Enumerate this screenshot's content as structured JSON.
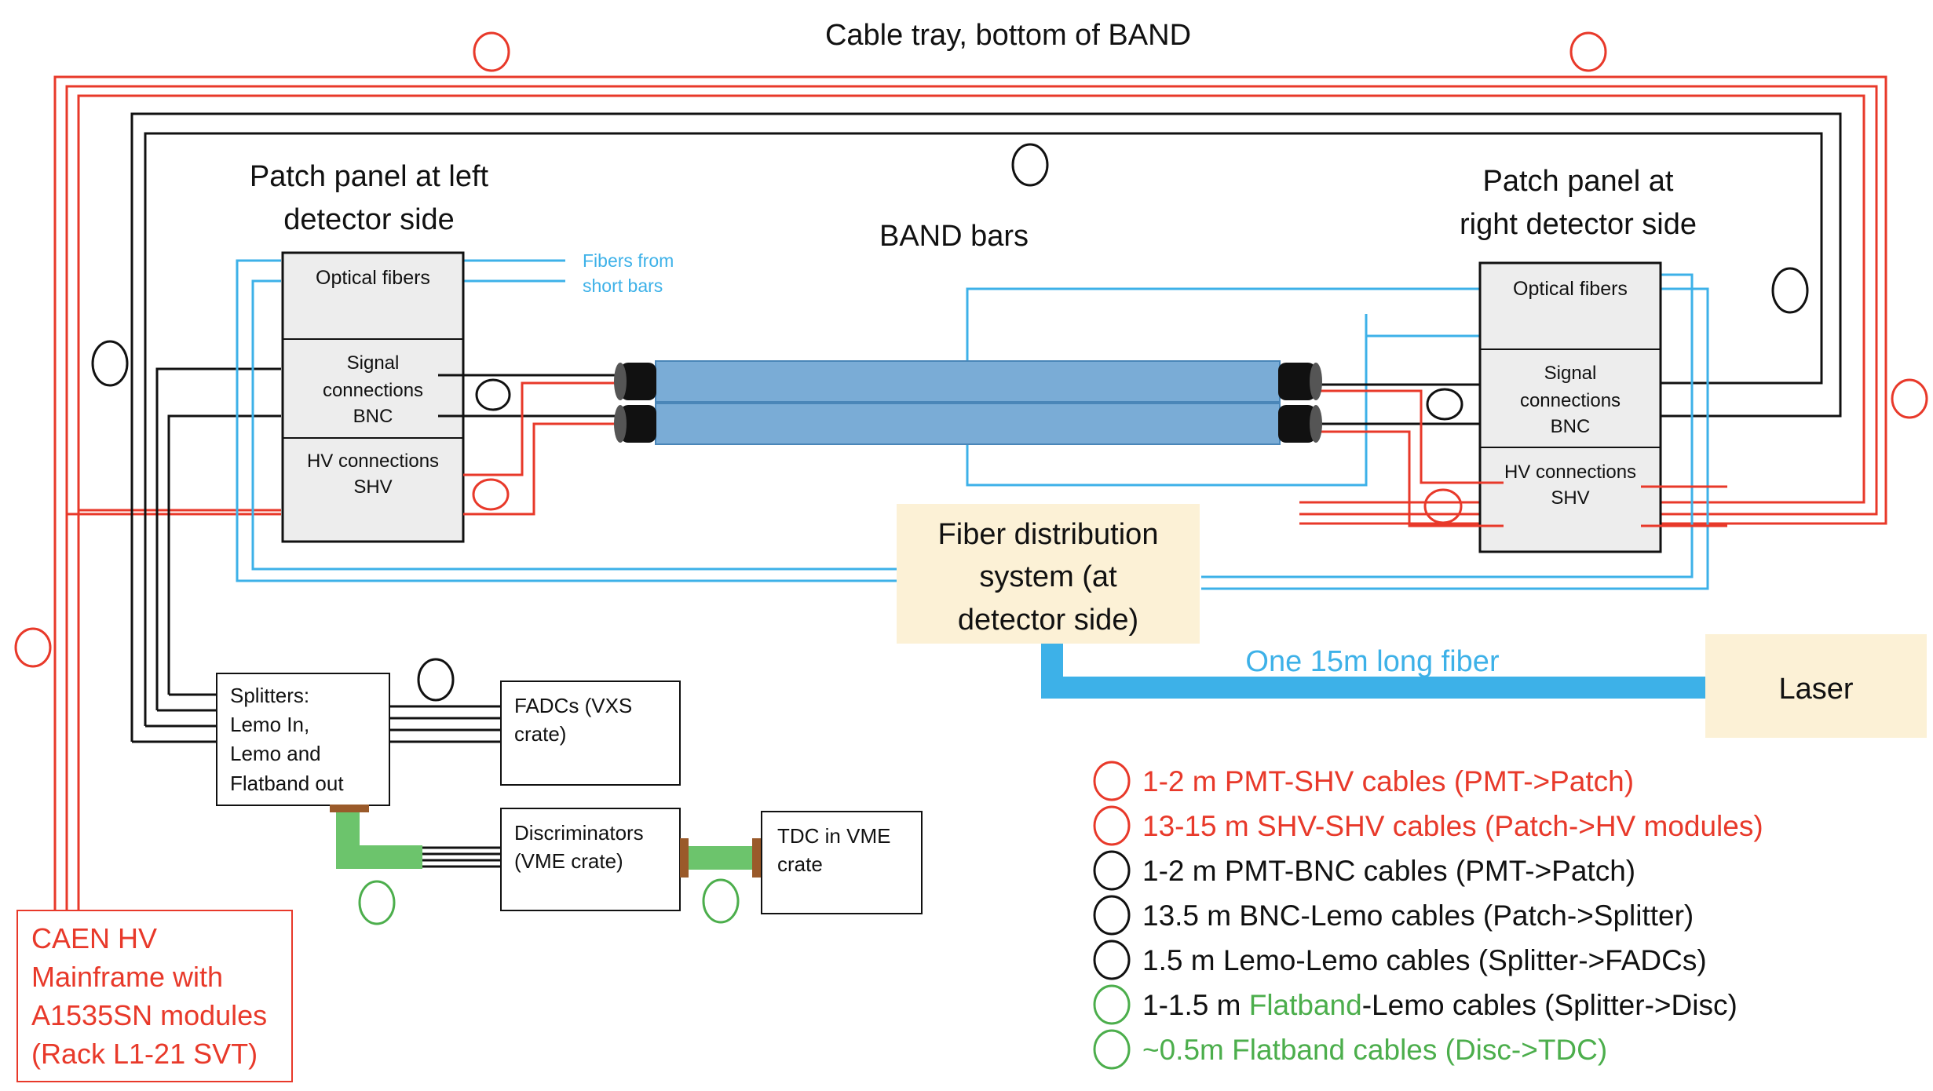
{
  "colors": {
    "red": "#e8392a",
    "black": "#111111",
    "blue": "#3db1e8",
    "green": "#4cae4c",
    "bar_fill": "#7aacd6",
    "panel_fill": "#ededed",
    "tan_fill": "#fcf1d6",
    "flatband_green": "#6cc46c",
    "connector_brown": "#9a5a2a"
  },
  "title": "Cable tray, bottom of BAND",
  "left_panel": {
    "heading": [
      "Patch panel at left",
      "detector side"
    ],
    "optical": "Optical fibers",
    "signal": [
      "Signal",
      "connections",
      "BNC"
    ],
    "hv": [
      "HV connections",
      "SHV"
    ]
  },
  "right_panel": {
    "heading": [
      "Patch panel at",
      "right detector side"
    ],
    "optical": "Optical fibers",
    "signal": [
      "Signal",
      "connections",
      "BNC"
    ],
    "hv": [
      "HV connections",
      "SHV"
    ]
  },
  "fibers_label": [
    "Fibers from",
    "short bars"
  ],
  "band_bars": "BAND bars",
  "fiber_distribution": [
    "Fiber distribution",
    "system (at",
    "detector side)"
  ],
  "long_fiber": "One 15m long fiber",
  "laser": "Laser",
  "splitters": [
    "Splitters:",
    "Lemo In,",
    "Lemo and",
    "Flatband out"
  ],
  "fadcs": [
    "FADCs (VXS",
    "crate)"
  ],
  "discriminators": [
    "Discriminators",
    "(VME crate)"
  ],
  "tdc": [
    "TDC in VME",
    "crate"
  ],
  "caen": [
    "CAEN HV",
    "Mainframe with",
    "A1535SN modules",
    "(Rack L1-21 SVT)"
  ],
  "legend": [
    {
      "parts": [
        {
          "text": "1-2 m PMT-SHV cables (PMT->Patch)",
          "color": "red"
        }
      ],
      "marker": "red"
    },
    {
      "parts": [
        {
          "text": "13-15 m SHV-SHV cables (Patch->HV modules)",
          "color": "red"
        }
      ],
      "marker": "red"
    },
    {
      "parts": [
        {
          "text": "1-2 m PMT-BNC cables (PMT->Patch)",
          "color": "black"
        }
      ],
      "marker": "black"
    },
    {
      "parts": [
        {
          "text": "13.5 m BNC-Lemo cables (Patch->Splitter)",
          "color": "black"
        }
      ],
      "marker": "black"
    },
    {
      "parts": [
        {
          "text": "1.5 m Lemo-Lemo cables (Splitter->FADCs)",
          "color": "black"
        }
      ],
      "marker": "black"
    },
    {
      "parts": [
        {
          "text": "1-1.5 m ",
          "color": "black"
        },
        {
          "text": "Flatband",
          "color": "green"
        },
        {
          "text": "-Lemo cables (Splitter->Disc)",
          "color": "black"
        }
      ],
      "marker": "green"
    },
    {
      "parts": [
        {
          "text": "~0.5m Flatband cables (Disc->TDC)",
          "color": "green"
        }
      ],
      "marker": "green"
    }
  ]
}
